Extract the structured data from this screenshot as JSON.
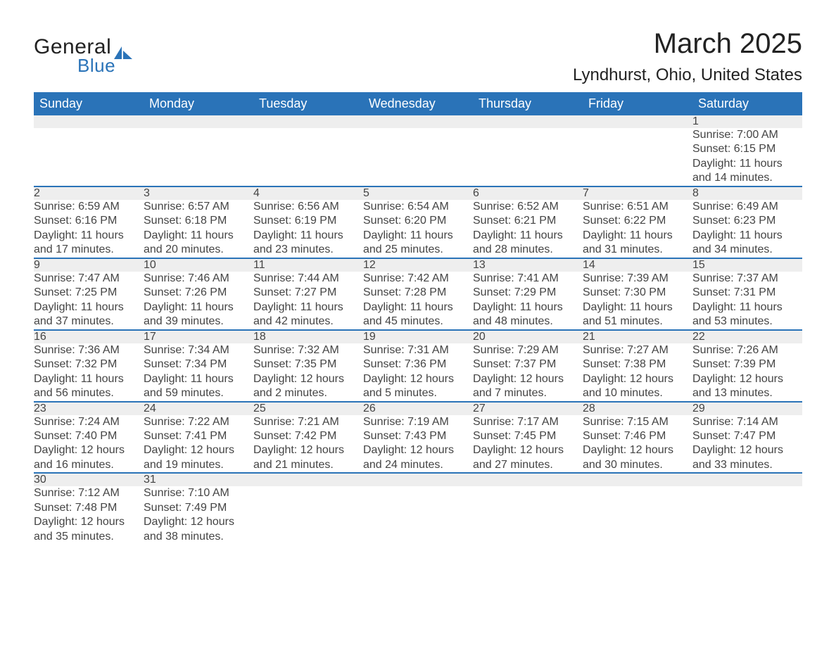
{
  "logo": {
    "word1": "General",
    "word2": "Blue",
    "text_color": "#222222",
    "accent_color": "#2a73b8"
  },
  "title": "March 2025",
  "location": "Lyndhurst, Ohio, United States",
  "colors": {
    "header_bg": "#2a73b8",
    "header_text": "#ffffff",
    "daynum_bg": "#eeeeee",
    "row_divider": "#2a73b8",
    "body_text": "#444444",
    "page_bg": "#ffffff"
  },
  "fonts": {
    "title_size_pt": 30,
    "location_size_pt": 18,
    "dayhdr_size_pt": 14,
    "cell_size_pt": 12
  },
  "day_headers": [
    "Sunday",
    "Monday",
    "Tuesday",
    "Wednesday",
    "Thursday",
    "Friday",
    "Saturday"
  ],
  "labels": {
    "sunrise": "Sunrise:",
    "sunset": "Sunset:",
    "daylight": "Daylight:"
  },
  "weeks": [
    [
      null,
      null,
      null,
      null,
      null,
      null,
      {
        "n": "1",
        "sunrise": "7:00 AM",
        "sunset": "6:15 PM",
        "daylight": "11 hours and 14 minutes."
      }
    ],
    [
      {
        "n": "2",
        "sunrise": "6:59 AM",
        "sunset": "6:16 PM",
        "daylight": "11 hours and 17 minutes."
      },
      {
        "n": "3",
        "sunrise": "6:57 AM",
        "sunset": "6:18 PM",
        "daylight": "11 hours and 20 minutes."
      },
      {
        "n": "4",
        "sunrise": "6:56 AM",
        "sunset": "6:19 PM",
        "daylight": "11 hours and 23 minutes."
      },
      {
        "n": "5",
        "sunrise": "6:54 AM",
        "sunset": "6:20 PM",
        "daylight": "11 hours and 25 minutes."
      },
      {
        "n": "6",
        "sunrise": "6:52 AM",
        "sunset": "6:21 PM",
        "daylight": "11 hours and 28 minutes."
      },
      {
        "n": "7",
        "sunrise": "6:51 AM",
        "sunset": "6:22 PM",
        "daylight": "11 hours and 31 minutes."
      },
      {
        "n": "8",
        "sunrise": "6:49 AM",
        "sunset": "6:23 PM",
        "daylight": "11 hours and 34 minutes."
      }
    ],
    [
      {
        "n": "9",
        "sunrise": "7:47 AM",
        "sunset": "7:25 PM",
        "daylight": "11 hours and 37 minutes."
      },
      {
        "n": "10",
        "sunrise": "7:46 AM",
        "sunset": "7:26 PM",
        "daylight": "11 hours and 39 minutes."
      },
      {
        "n": "11",
        "sunrise": "7:44 AM",
        "sunset": "7:27 PM",
        "daylight": "11 hours and 42 minutes."
      },
      {
        "n": "12",
        "sunrise": "7:42 AM",
        "sunset": "7:28 PM",
        "daylight": "11 hours and 45 minutes."
      },
      {
        "n": "13",
        "sunrise": "7:41 AM",
        "sunset": "7:29 PM",
        "daylight": "11 hours and 48 minutes."
      },
      {
        "n": "14",
        "sunrise": "7:39 AM",
        "sunset": "7:30 PM",
        "daylight": "11 hours and 51 minutes."
      },
      {
        "n": "15",
        "sunrise": "7:37 AM",
        "sunset": "7:31 PM",
        "daylight": "11 hours and 53 minutes."
      }
    ],
    [
      {
        "n": "16",
        "sunrise": "7:36 AM",
        "sunset": "7:32 PM",
        "daylight": "11 hours and 56 minutes."
      },
      {
        "n": "17",
        "sunrise": "7:34 AM",
        "sunset": "7:34 PM",
        "daylight": "11 hours and 59 minutes."
      },
      {
        "n": "18",
        "sunrise": "7:32 AM",
        "sunset": "7:35 PM",
        "daylight": "12 hours and 2 minutes."
      },
      {
        "n": "19",
        "sunrise": "7:31 AM",
        "sunset": "7:36 PM",
        "daylight": "12 hours and 5 minutes."
      },
      {
        "n": "20",
        "sunrise": "7:29 AM",
        "sunset": "7:37 PM",
        "daylight": "12 hours and 7 minutes."
      },
      {
        "n": "21",
        "sunrise": "7:27 AM",
        "sunset": "7:38 PM",
        "daylight": "12 hours and 10 minutes."
      },
      {
        "n": "22",
        "sunrise": "7:26 AM",
        "sunset": "7:39 PM",
        "daylight": "12 hours and 13 minutes."
      }
    ],
    [
      {
        "n": "23",
        "sunrise": "7:24 AM",
        "sunset": "7:40 PM",
        "daylight": "12 hours and 16 minutes."
      },
      {
        "n": "24",
        "sunrise": "7:22 AM",
        "sunset": "7:41 PM",
        "daylight": "12 hours and 19 minutes."
      },
      {
        "n": "25",
        "sunrise": "7:21 AM",
        "sunset": "7:42 PM",
        "daylight": "12 hours and 21 minutes."
      },
      {
        "n": "26",
        "sunrise": "7:19 AM",
        "sunset": "7:43 PM",
        "daylight": "12 hours and 24 minutes."
      },
      {
        "n": "27",
        "sunrise": "7:17 AM",
        "sunset": "7:45 PM",
        "daylight": "12 hours and 27 minutes."
      },
      {
        "n": "28",
        "sunrise": "7:15 AM",
        "sunset": "7:46 PM",
        "daylight": "12 hours and 30 minutes."
      },
      {
        "n": "29",
        "sunrise": "7:14 AM",
        "sunset": "7:47 PM",
        "daylight": "12 hours and 33 minutes."
      }
    ],
    [
      {
        "n": "30",
        "sunrise": "7:12 AM",
        "sunset": "7:48 PM",
        "daylight": "12 hours and 35 minutes."
      },
      {
        "n": "31",
        "sunrise": "7:10 AM",
        "sunset": "7:49 PM",
        "daylight": "12 hours and 38 minutes."
      },
      null,
      null,
      null,
      null,
      null
    ]
  ]
}
